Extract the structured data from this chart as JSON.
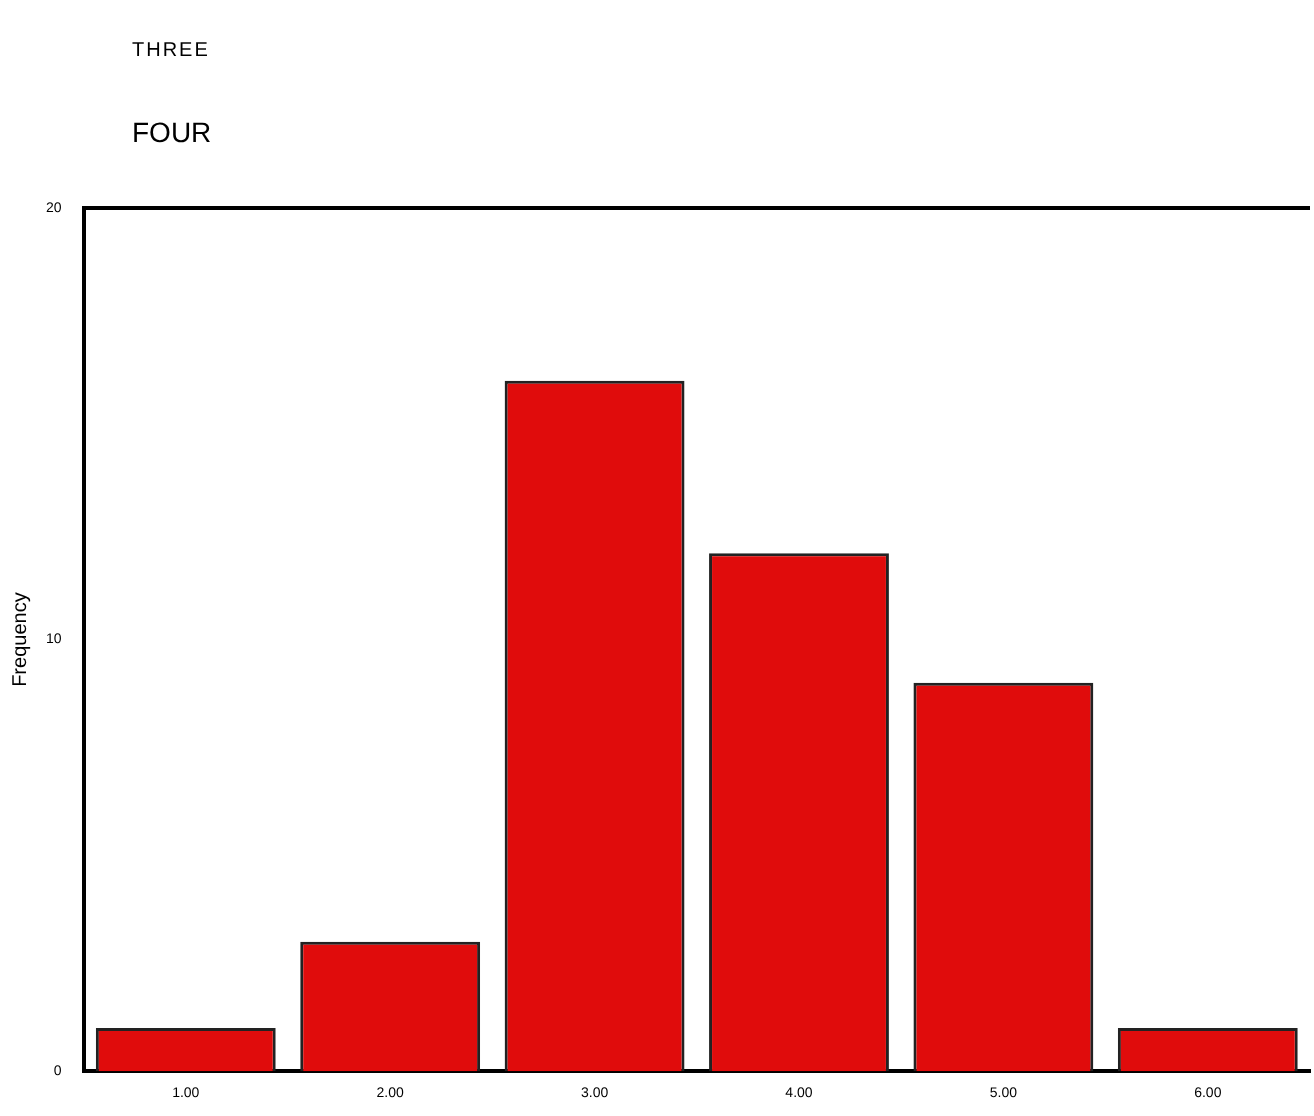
{
  "chart_data": {
    "type": "bar",
    "title": "THREE",
    "subtitle": "FOUR",
    "ylabel": "Frequency",
    "categories": [
      "1.00",
      "2.00",
      "3.00",
      "4.00",
      "5.00",
      "6.00"
    ],
    "values": [
      1,
      3,
      16,
      12,
      9,
      1
    ],
    "color": "#e00c0c",
    "ylim": [
      0,
      20
    ],
    "yticks": [
      0,
      10,
      20
    ],
    "grid": false
  }
}
